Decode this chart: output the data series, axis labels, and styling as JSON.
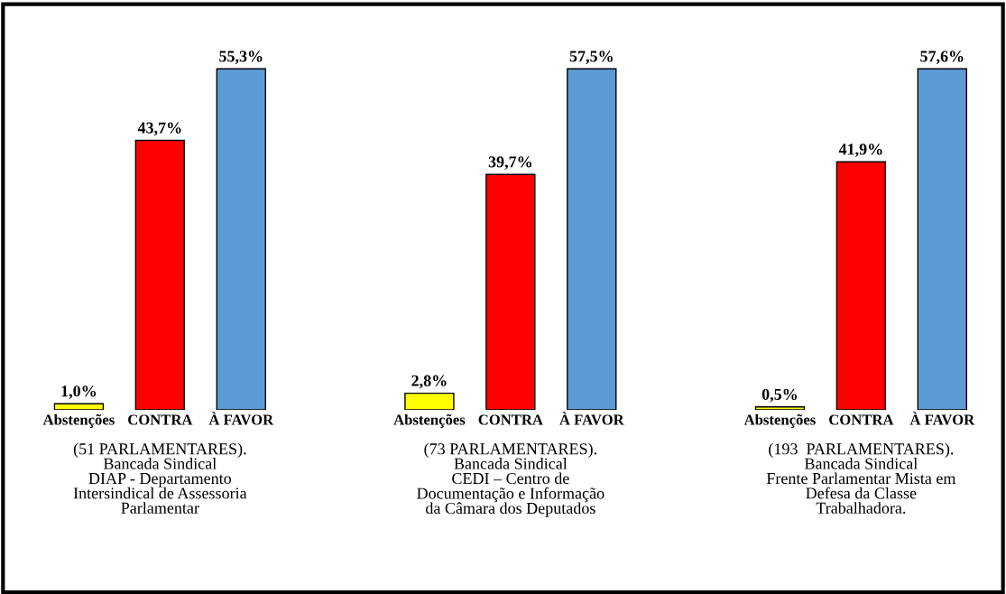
{
  "chart_data": [
    {
      "type": "bar",
      "categories": [
        "Abstenções",
        "CONTRA",
        "À FAVOR"
      ],
      "values": [
        1.0,
        43.7,
        55.3
      ],
      "colors": [
        "#ffff00",
        "#ff0000",
        "#5b9bd5"
      ],
      "value_labels": [
        "1,0%",
        "43,7%",
        "55,3%"
      ],
      "xlabel": "(51 PARLAMENTARES).\nBancada Sindical\nDIAP - Departamento\nIntersindical de Assessoria\nParlamentar",
      "tick_labels": "x"
    },
    {
      "type": "bar",
      "categories": [
        "Abstenções",
        "CONTRA",
        "À FAVOR"
      ],
      "values": [
        2.8,
        39.7,
        57.5
      ],
      "colors": [
        "#ffff00",
        "#ff0000",
        "#5b9bd5"
      ],
      "value_labels": [
        "2,8%",
        "39,7%",
        "57,5%"
      ],
      "xlabel": "(73 PARLAMENTARES).\nBancada Sindical\nCEDI – Centro de\nDocumentação e Informação\nda Câmara dos Deputados",
      "tick_labels": "x"
    },
    {
      "type": "bar",
      "categories": [
        "Abstenções",
        "CONTRA",
        "À FAVOR"
      ],
      "values": [
        0.5,
        41.9,
        57.6
      ],
      "colors": [
        "#ffff00",
        "#ff0000",
        "#5b9bd5"
      ],
      "value_labels": [
        "0,5%",
        "41,9%",
        "57,6%"
      ],
      "xlabel": "(193  PARLAMENTARES).\nBancada Sindical\nFrente Parlamentar Mista em\nDefesa da Classe\nTrabalhadora.",
      "tick_labels": "x"
    }
  ]
}
